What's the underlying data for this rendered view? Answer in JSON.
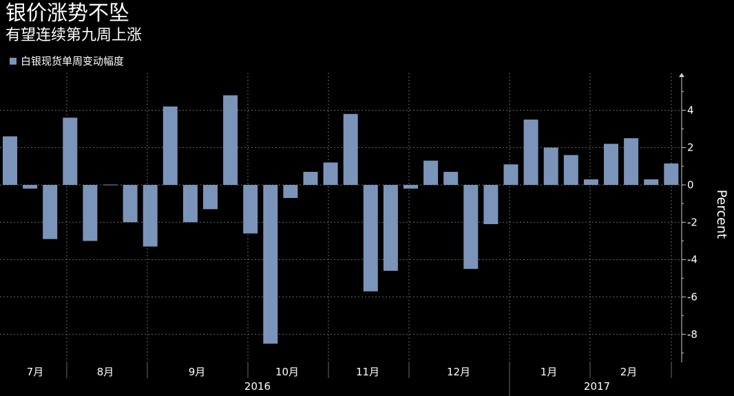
{
  "title": "银价涨势不坠",
  "subtitle": "有望连续第九周上涨",
  "colors": {
    "background": "#000000",
    "bar": "#7b94b9",
    "grid": "#6a6a6a",
    "axis": "#cfcfcf",
    "text": "#ffffff"
  },
  "chart_data": {
    "type": "bar",
    "legend": "白银现货单周变动幅度",
    "legend_position": "top-left",
    "ylabel": "Percent",
    "ylim": [
      -9.5,
      6
    ],
    "y_ticks": [
      4,
      2,
      0,
      -2,
      -4,
      -6,
      -8
    ],
    "grid": true,
    "series": [
      {
        "name": "白银现货单周变动幅度",
        "values": [
          2.6,
          -0.2,
          -2.9,
          3.6,
          -3.0,
          0.0,
          -2.0,
          -3.3,
          4.2,
          -2.0,
          -1.3,
          4.8,
          -2.6,
          -8.5,
          -0.7,
          0.7,
          1.2,
          3.8,
          -5.7,
          -4.6,
          -0.2,
          1.3,
          0.7,
          -4.5,
          -2.1,
          1.1,
          3.5,
          2.0,
          1.6,
          0.3,
          2.2,
          2.5,
          0.3,
          1.15
        ]
      }
    ],
    "x_month_labels": [
      "7月",
      "8月",
      "9月",
      "10月",
      "11月",
      "12月",
      "1月",
      "2月"
    ],
    "x_year_labels": [
      "2016",
      "2017"
    ]
  }
}
